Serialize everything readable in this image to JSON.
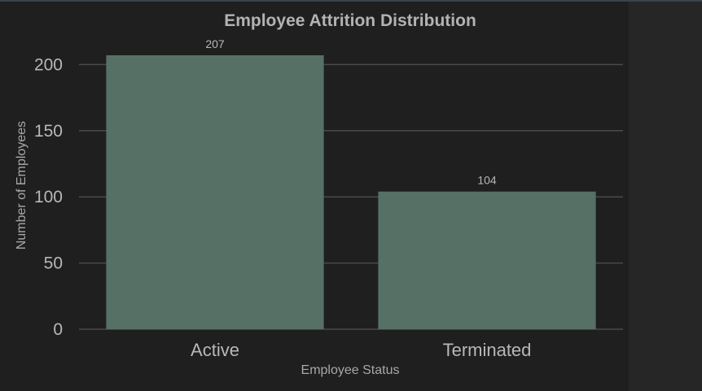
{
  "chart_data": {
    "type": "bar",
    "title": "Employee Attrition Distribution",
    "xlabel": "Employee Status",
    "ylabel": "Number of Employees",
    "categories": [
      "Active",
      "Terminated"
    ],
    "values": [
      207,
      104
    ],
    "data_labels": [
      "207",
      "104"
    ],
    "yticks": [
      0,
      50,
      100,
      150,
      200
    ],
    "ylim": [
      0,
      207
    ],
    "grid": true,
    "colors": {
      "bar": "#577066",
      "grid": "#4a4a4a",
      "background": "#1f1f1f",
      "text": "#b8b8b8"
    }
  }
}
